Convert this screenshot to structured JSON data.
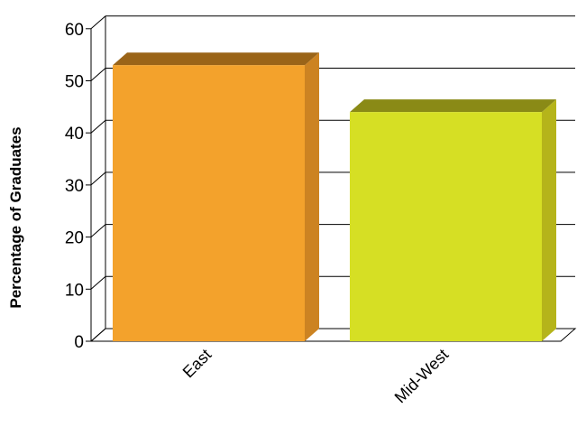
{
  "chart_data": {
    "type": "bar",
    "title": "",
    "xlabel": "",
    "ylabel": "Percentage of Graduates",
    "categories": [
      "East",
      "Mid-West"
    ],
    "values": [
      53,
      44
    ],
    "ylim": [
      0,
      60
    ],
    "yticks": [
      0,
      10,
      20,
      30,
      40,
      50,
      60
    ],
    "grid": true,
    "style": "3d",
    "colors": {
      "bar_faces": [
        "#f3a22c",
        "#d6df24"
      ],
      "bar_tops": [
        "#9a6418",
        "#8a8a16"
      ],
      "bar_sides": [
        "#cc8322",
        "#b5b41a"
      ]
    }
  }
}
